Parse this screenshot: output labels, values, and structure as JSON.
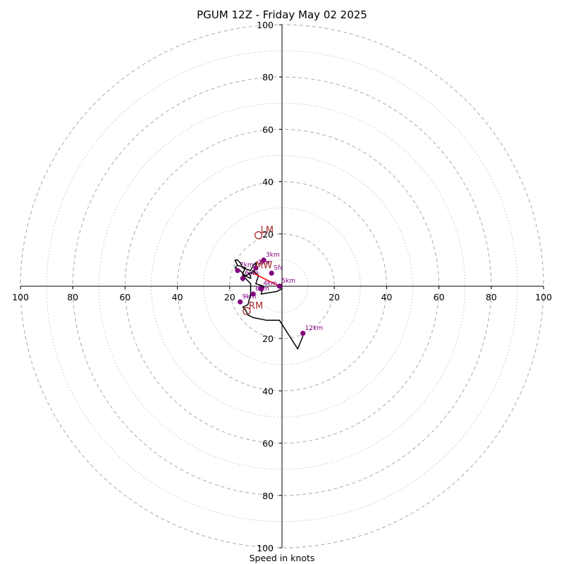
{
  "chart_data": {
    "type": "hodograph",
    "title": "PGUM 12Z - Friday May 02 2025",
    "xlabel": "Speed in knots",
    "rings": [
      10,
      20,
      30,
      40,
      50,
      60,
      70,
      80,
      90,
      100
    ],
    "ring_labels": [
      "20",
      "40",
      "60",
      "80",
      "100"
    ],
    "max_speed": 100,
    "grid": true,
    "hodograph_trace": [
      [
        0,
        1
      ],
      [
        -1,
        0
      ],
      [
        0,
        -1
      ],
      [
        -2,
        -2
      ],
      [
        -8,
        -3
      ],
      [
        -7,
        0
      ],
      [
        -10,
        1
      ],
      [
        -9,
        4
      ],
      [
        -11,
        6
      ],
      [
        -12,
        5
      ],
      [
        -14,
        4
      ],
      [
        -15,
        2
      ],
      [
        -15,
        5
      ],
      [
        -14,
        7
      ],
      [
        -17,
        8
      ],
      [
        -14,
        7
      ],
      [
        -15,
        5
      ],
      [
        -14,
        4
      ],
      [
        -12,
        3
      ],
      [
        -12,
        4
      ],
      [
        -13,
        5
      ],
      [
        -11,
        5
      ],
      [
        -10,
        7
      ],
      [
        -10,
        9
      ],
      [
        -11,
        8
      ],
      [
        -12,
        6
      ],
      [
        -15,
        7
      ],
      [
        -16,
        9
      ],
      [
        -17,
        10
      ],
      [
        -18,
        10
      ],
      [
        -17,
        8
      ],
      [
        -18,
        7
      ],
      [
        -16,
        6
      ],
      [
        -15,
        5
      ],
      [
        -14,
        3
      ],
      [
        -13,
        2
      ],
      [
        -12,
        1
      ],
      [
        -12,
        -1
      ],
      [
        -12,
        -3
      ],
      [
        -13,
        -7
      ],
      [
        -15,
        -8
      ],
      [
        -14,
        -9
      ],
      [
        -13,
        -11
      ],
      [
        -11,
        -12
      ],
      [
        -6,
        -13
      ],
      [
        -1,
        -13
      ],
      [
        6,
        -24
      ],
      [
        8,
        -19
      ]
    ],
    "height_markers": [
      {
        "label": "Sfc",
        "u": -4,
        "v": 5
      },
      {
        "label": "1km",
        "u": -10,
        "v": 7
      },
      {
        "label": "2km",
        "u": -10,
        "v": 7
      },
      {
        "label": "3km",
        "u": -7,
        "v": 10
      },
      {
        "label": "4km",
        "u": -8,
        "v": -1
      },
      {
        "label": "5km",
        "u": -1,
        "v": 0
      },
      {
        "label": "6km",
        "u": -15,
        "v": 3
      },
      {
        "label": "7km",
        "u": -17,
        "v": 6
      },
      {
        "label": "8km",
        "u": -11,
        "v": -3
      },
      {
        "label": "9km",
        "u": -16,
        "v": -6
      },
      {
        "label": "12km",
        "u": 8,
        "v": -18
      }
    ],
    "storm_motion": [
      {
        "label": "LM",
        "u": -9,
        "v": 19.5
      },
      {
        "label": "RM",
        "u": -13.5,
        "v": -9.5
      },
      {
        "label": "MW",
        "u": -11,
        "v": 6
      }
    ],
    "shear_vector": {
      "from": [
        -11,
        5
      ],
      "to": [
        -1,
        0
      ],
      "color": "#ff0000"
    },
    "colors": {
      "trace": "#000000",
      "markers": "#800080",
      "motion": "#a52a2a",
      "grid": "#b0b0b0"
    }
  }
}
